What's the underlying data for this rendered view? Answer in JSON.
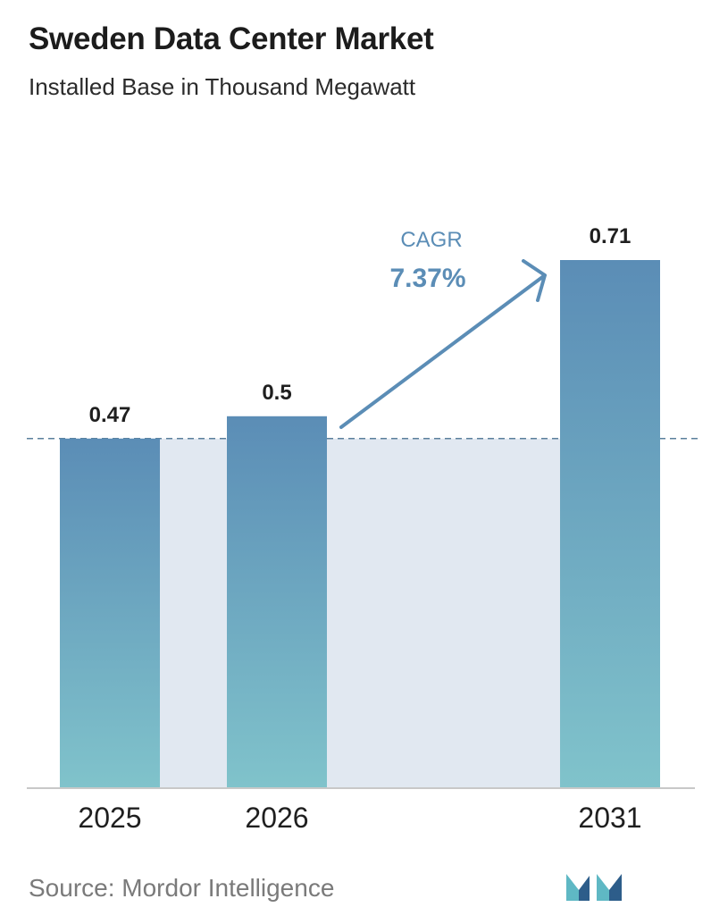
{
  "title": "Sweden Data Center Market",
  "subtitle": "Installed Base in Thousand Megawatt",
  "source": "Source: Mordor Intelligence",
  "cagr": {
    "label": "CAGR",
    "value": "7.37%"
  },
  "colors": {
    "bar_top": "#5b8db6",
    "bar_bottom": "#80c3cb",
    "band": "#e1e8f1",
    "arrow": "#5b8db6",
    "reference_line": "#5b7f9c",
    "cagr_label": "#5b8db6",
    "axis": "#c8c8c8",
    "logo_dark": "#2d5d8a",
    "logo_light": "#5fb8c4"
  },
  "chart_data": {
    "type": "bar",
    "title": "Sweden Data Center Market",
    "subtitle": "Installed Base in Thousand Megawatt",
    "xlabel": "",
    "ylabel": "",
    "categories": [
      "2025",
      "2026",
      "2031"
    ],
    "values": [
      0.47,
      0.5,
      0.71
    ],
    "value_labels": [
      "0.47",
      "0.5",
      "0.71"
    ],
    "ylim": [
      0,
      0.71
    ],
    "grid": false,
    "legend": "none",
    "annotations": [
      {
        "type": "arrow",
        "from": "2026",
        "to": "2031",
        "text": "CAGR 7.37%"
      },
      {
        "type": "dashed-reference-line",
        "value": 0.47
      }
    ]
  }
}
